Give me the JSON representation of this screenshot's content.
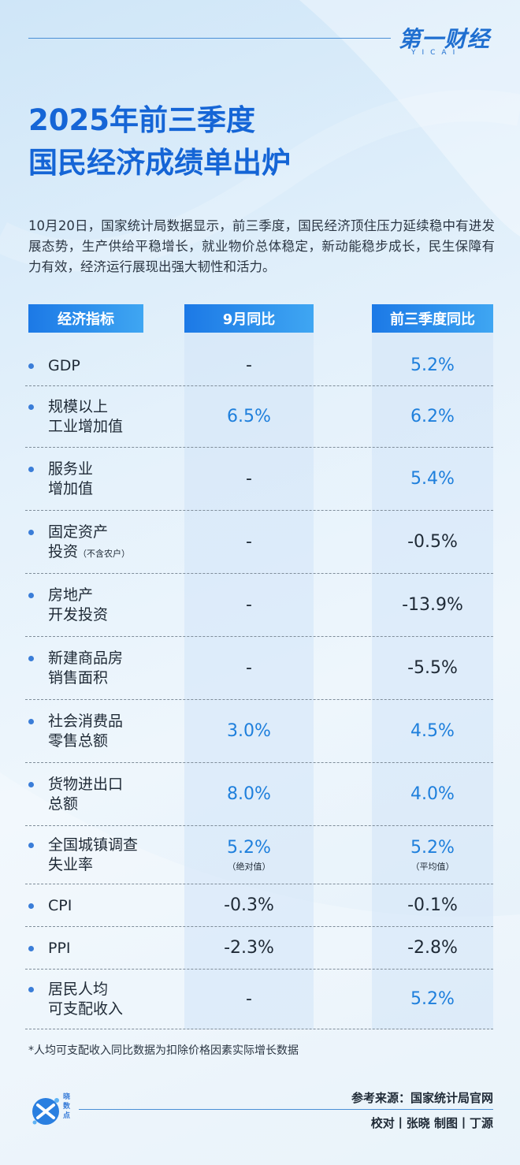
{
  "header": {
    "logo_main": "第一财经",
    "logo_sub": "YICAI"
  },
  "title_line1": "2025年前三季度",
  "title_line2": "国民经济成绩单出炉",
  "intro": "10月20日，国家统计局数据显示，前三季度，国民经济顶住压力延续稳中有进发展态势，生产供给平稳增长，就业物价总体稳定，新动能稳步成长，民生保障有力有效，经济运行展现出强大韧性和活力。",
  "table": {
    "headers": [
      "经济指标",
      "9月同比",
      "前三季度同比"
    ],
    "rows": [
      {
        "line1": "GDP",
        "line2": "",
        "small": "",
        "sep": "-",
        "ytd": "5.2%",
        "sep_note": "",
        "ytd_note": ""
      },
      {
        "line1": "规模以上",
        "line2": "工业增加值",
        "small": "",
        "sep": "6.5%",
        "ytd": "6.2%",
        "sep_note": "",
        "ytd_note": ""
      },
      {
        "line1": "服务业",
        "line2": "增加值",
        "small": "",
        "sep": "-",
        "ytd": "5.4%",
        "sep_note": "",
        "ytd_note": ""
      },
      {
        "line1": "固定资产",
        "line2": "投资",
        "small": "（不含农户）",
        "sep": "-",
        "ytd": "-0.5%",
        "sep_note": "",
        "ytd_note": ""
      },
      {
        "line1": "房地产",
        "line2": "开发投资",
        "small": "",
        "sep": "-",
        "ytd": "-13.9%",
        "sep_note": "",
        "ytd_note": ""
      },
      {
        "line1": "新建商品房",
        "line2": "销售面积",
        "small": "",
        "sep": "-",
        "ytd": "-5.5%",
        "sep_note": "",
        "ytd_note": ""
      },
      {
        "line1": "社会消费品",
        "line2": "零售总额",
        "small": "",
        "sep": "3.0%",
        "ytd": "4.5%",
        "sep_note": "",
        "ytd_note": ""
      },
      {
        "line1": "货物进出口",
        "line2": "总额",
        "small": "",
        "sep": "8.0%",
        "ytd": "4.0%",
        "sep_note": "",
        "ytd_note": ""
      },
      {
        "line1": "全国城镇调查",
        "line2": "失业率",
        "small": "",
        "sep": "5.2%",
        "ytd": "5.2%",
        "sep_note": "（绝对值）",
        "ytd_note": "（平均值）"
      },
      {
        "line1": "CPI",
        "line2": "",
        "small": "",
        "sep": "-0.3%",
        "ytd": "-0.1%",
        "sep_note": "",
        "ytd_note": ""
      },
      {
        "line1": "PPI",
        "line2": "",
        "small": "",
        "sep": "-2.3%",
        "ytd": "-2.8%",
        "sep_note": "",
        "ytd_note": ""
      },
      {
        "line1": "居民人均",
        "line2": "可支配收入",
        "small": "",
        "sep": "-",
        "ytd": "5.2%",
        "sep_note": "",
        "ytd_note": ""
      }
    ]
  },
  "footnote": "*人均可支配收入同比数据为扣除价格因素实际增长数据",
  "footer": {
    "brand": "晓数点",
    "source": "参考来源：国家统计局官网",
    "credits": "校对丨张晓 制图丨丁源"
  },
  "colors": {
    "accent": "#1565d6",
    "value_blue": "#1e7fdc",
    "header_grad_start": "#1c79e6",
    "header_grad_end": "#3fa6f2"
  }
}
